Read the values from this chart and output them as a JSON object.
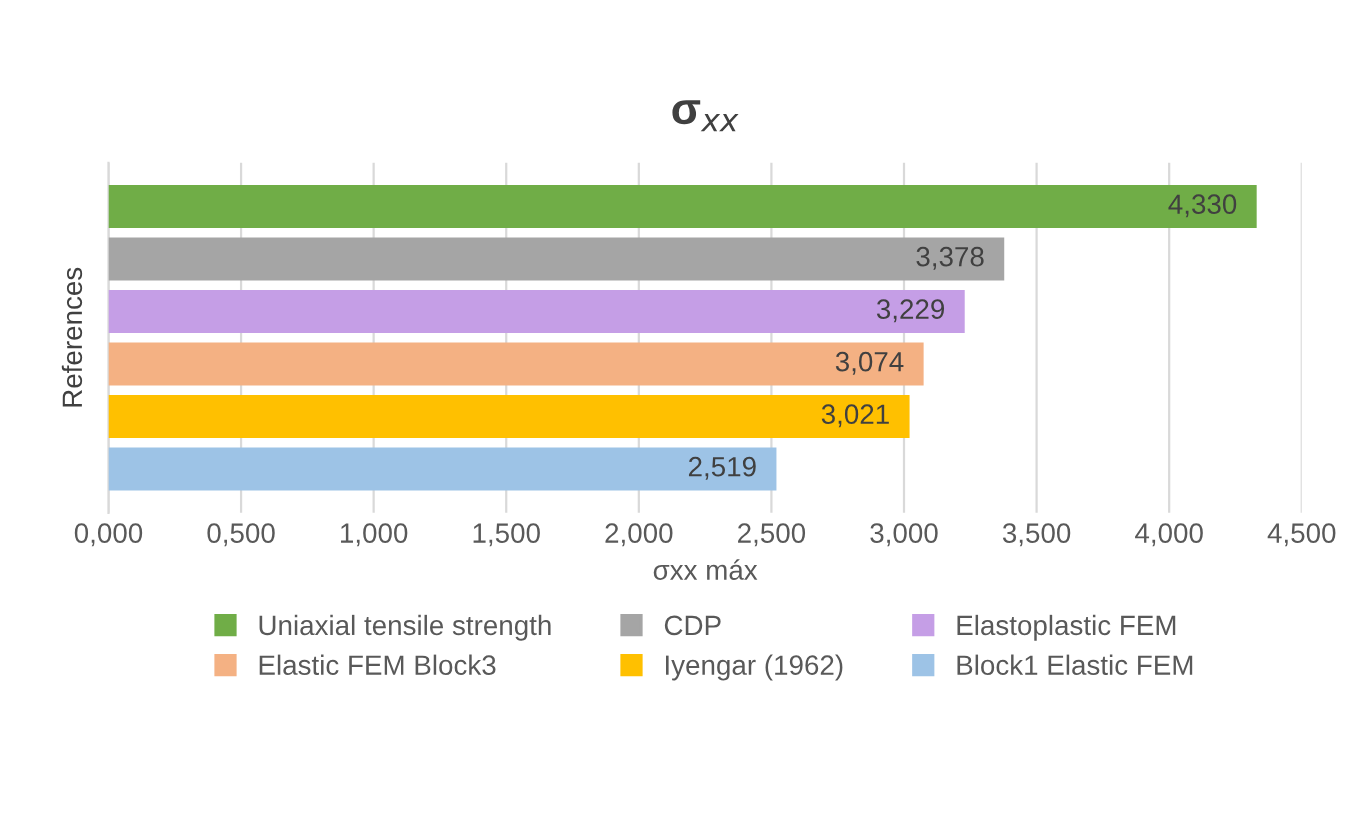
{
  "chart_data": {
    "type": "bar",
    "orientation": "horizontal",
    "title": "σ$_{xx}$",
    "xlabel": "σxx máx",
    "ylabel": "References",
    "categories": [
      null
    ],
    "series": [
      {
        "name": "Uniaxial tensile strength",
        "color": "#70ad47",
        "values": [
          4.33
        ],
        "value_labels": [
          "4,330"
        ]
      },
      {
        "name": "CDP",
        "color": "#a5a5a5",
        "values": [
          3.378
        ],
        "value_labels": [
          "3,378"
        ]
      },
      {
        "name": "Elastoplastic FEM",
        "color": "#c59ee6",
        "values": [
          3.229
        ],
        "value_labels": [
          "3,229"
        ]
      },
      {
        "name": "Elastic FEM Block3",
        "color": "#f4b183",
        "values": [
          3.074
        ],
        "value_labels": [
          "3,074"
        ]
      },
      {
        "name": "Iyengar (1962)",
        "color": "#ffc000",
        "values": [
          3.021
        ],
        "value_labels": [
          "3,021"
        ]
      },
      {
        "name": "Block1 Elastic FEM",
        "color": "#9dc3e6",
        "values": [
          2.519
        ],
        "value_labels": [
          "2,519"
        ]
      }
    ],
    "xlim": [
      0,
      4.5
    ],
    "xticks": [
      {
        "value": 0,
        "label": "0,000"
      },
      {
        "value": 0.5,
        "label": "0,500"
      },
      {
        "value": 1,
        "label": "1,000"
      },
      {
        "value": 1.5,
        "label": "1,500"
      },
      {
        "value": 2,
        "label": "2,000"
      },
      {
        "value": 2.5,
        "label": "2,500"
      },
      {
        "value": 3,
        "label": "3,000"
      },
      {
        "value": 3.5,
        "label": "3,500"
      },
      {
        "value": 4,
        "label": "4,000"
      },
      {
        "value": 4.5,
        "label": "4,500"
      }
    ],
    "grid": "x",
    "legend": "bottom"
  }
}
